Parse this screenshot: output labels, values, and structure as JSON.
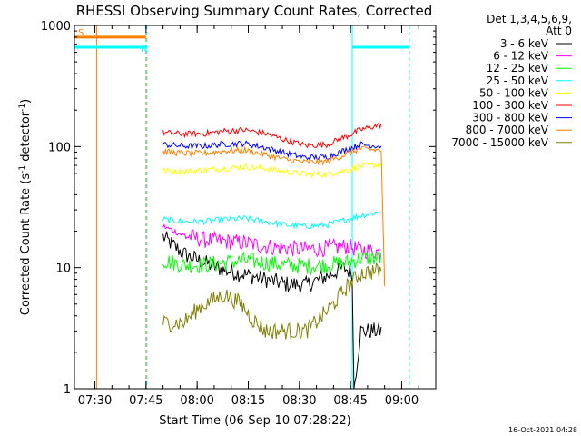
{
  "chart_data": {
    "type": "line",
    "title": "RHESSI Observing Summary Count Rates, Corrected",
    "xlabel": "Start Time (06-Sep-10 07:28:22)",
    "ylabel_parts": [
      "Corrected Count Rate (s",
      "-1",
      " detector",
      "-1",
      ")"
    ],
    "ylabel_text": "Corrected Count Rate (s-1 detector-1)",
    "yscale": "log",
    "ylim": [
      1,
      1000
    ],
    "y_ticks": [
      {
        "value": 1,
        "label": "1"
      },
      {
        "value": 10,
        "label": "10"
      },
      {
        "value": 100,
        "label": "100"
      },
      {
        "value": 1000,
        "label": "1000"
      }
    ],
    "xlim_minutes_after_0728": [
      -4,
      102
    ],
    "x_ticks": [
      {
        "minute": 2,
        "label": "07:30"
      },
      {
        "minute": 17,
        "label": "07:45"
      },
      {
        "minute": 32,
        "label": "08:00"
      },
      {
        "minute": 47,
        "label": "08:15"
      },
      {
        "minute": 62,
        "label": "08:30"
      },
      {
        "minute": 77,
        "label": "08:45"
      },
      {
        "minute": 92,
        "label": "09:00"
      }
    ],
    "legend_header": [
      "Det 1,3,4,5,6,9,",
      "Att 0"
    ],
    "series": [
      {
        "name": "3 - 6 keV",
        "color": "#000000",
        "points": [
          [
            22,
            18
          ],
          [
            28,
            13
          ],
          [
            34,
            11
          ],
          [
            40,
            9.5
          ],
          [
            46,
            8.8
          ],
          [
            52,
            8
          ],
          [
            58,
            7.3
          ],
          [
            64,
            7.2
          ],
          [
            70,
            8.5
          ],
          [
            75,
            10
          ],
          [
            77.5,
            9
          ],
          [
            78,
            1
          ],
          [
            80,
            3
          ],
          [
            86,
            3
          ]
        ]
      },
      {
        "name": "6 - 12 keV",
        "color": "#ff00ff",
        "points": [
          [
            22,
            22
          ],
          [
            28,
            18.5
          ],
          [
            34,
            17
          ],
          [
            40,
            16.5
          ],
          [
            46,
            16
          ],
          [
            52,
            15
          ],
          [
            58,
            14.5
          ],
          [
            64,
            14.2
          ],
          [
            70,
            14.5
          ],
          [
            76,
            15
          ],
          [
            80,
            14
          ],
          [
            86,
            13.5
          ]
        ]
      },
      {
        "name": "12 - 25 keV",
        "color": "#00ff00",
        "points": [
          [
            22,
            11.5
          ],
          [
            28,
            10.5
          ],
          [
            34,
            10.5
          ],
          [
            40,
            11
          ],
          [
            46,
            11.5
          ],
          [
            52,
            11
          ],
          [
            58,
            10.5
          ],
          [
            64,
            10.3
          ],
          [
            70,
            10.5
          ],
          [
            76,
            11
          ],
          [
            80,
            12
          ],
          [
            86,
            12
          ]
        ]
      },
      {
        "name": "25 - 50 keV",
        "color": "#00ffff",
        "points": [
          [
            22,
            25
          ],
          [
            28,
            24
          ],
          [
            34,
            24
          ],
          [
            40,
            25
          ],
          [
            46,
            25.5
          ],
          [
            52,
            24
          ],
          [
            58,
            22.5
          ],
          [
            64,
            22
          ],
          [
            70,
            22.5
          ],
          [
            76,
            25
          ],
          [
            80,
            27
          ],
          [
            86,
            29
          ]
        ]
      },
      {
        "name": "50 - 100 keV",
        "color": "#ffff00",
        "points": [
          [
            22,
            63
          ],
          [
            28,
            62
          ],
          [
            34,
            64
          ],
          [
            40,
            66
          ],
          [
            46,
            68
          ],
          [
            52,
            66
          ],
          [
            58,
            62
          ],
          [
            64,
            59
          ],
          [
            70,
            59
          ],
          [
            76,
            64
          ],
          [
            80,
            69
          ],
          [
            86,
            71
          ]
        ]
      },
      {
        "name": "100 - 300 keV",
        "color": "#ff0000",
        "points": [
          [
            22,
            130
          ],
          [
            28,
            127
          ],
          [
            34,
            128
          ],
          [
            40,
            134
          ],
          [
            46,
            137
          ],
          [
            52,
            128
          ],
          [
            58,
            113
          ],
          [
            64,
            102
          ],
          [
            70,
            104
          ],
          [
            76,
            122
          ],
          [
            80,
            138
          ],
          [
            86,
            152
          ]
        ]
      },
      {
        "name": "300 - 800 keV",
        "color": "#0000ff",
        "points": [
          [
            22,
            104
          ],
          [
            28,
            101
          ],
          [
            34,
            101
          ],
          [
            40,
            105
          ],
          [
            46,
            106
          ],
          [
            52,
            98
          ],
          [
            58,
            88
          ],
          [
            64,
            81
          ],
          [
            70,
            82
          ],
          [
            76,
            95
          ],
          [
            80,
            104
          ],
          [
            86,
            101
          ]
        ]
      },
      {
        "name": "800 - 7000 keV",
        "color": "#ff8000",
        "points": [
          [
            22,
            91
          ],
          [
            28,
            88
          ],
          [
            34,
            88
          ],
          [
            40,
            92
          ],
          [
            46,
            93
          ],
          [
            52,
            86
          ],
          [
            58,
            78
          ],
          [
            64,
            74
          ],
          [
            70,
            75
          ],
          [
            76,
            87
          ],
          [
            80,
            96
          ],
          [
            86,
            93
          ],
          [
            87,
            7
          ]
        ]
      },
      {
        "name": "7000 - 15000 keV",
        "color": "#808000",
        "points": [
          [
            22,
            3.5
          ],
          [
            28,
            3.5
          ],
          [
            33,
            4.8
          ],
          [
            40,
            6
          ],
          [
            45,
            5
          ],
          [
            48,
            3.8
          ],
          [
            52,
            3
          ],
          [
            58,
            3
          ],
          [
            64,
            3
          ],
          [
            68,
            3.8
          ],
          [
            72,
            5
          ],
          [
            76,
            7
          ],
          [
            80,
            9
          ],
          [
            86,
            9.5
          ]
        ]
      }
    ],
    "annotations": [
      {
        "label": "S",
        "color": "#ff8000",
        "value": 800,
        "x_range_minutes": [
          -4,
          17
        ]
      },
      {
        "label": "N",
        "color": "#00ffff",
        "value": 660,
        "x_range_minutes": [
          -4,
          17
        ]
      },
      {
        "label": "",
        "color": "#00ffff",
        "value": 660,
        "x_range_minutes": [
          77.5,
          94
        ]
      }
    ],
    "vertical_markers": [
      {
        "color": "#ff8000",
        "minute": 2.5,
        "style": "solid"
      },
      {
        "color": "#ff8000",
        "minute": 17,
        "style": "dashed"
      },
      {
        "color": "#00ffff",
        "minute": 17,
        "style": "dashed"
      },
      {
        "color": "#00ffff",
        "minute": 77.5,
        "style": "solid"
      },
      {
        "color": "#00ffff",
        "minute": 94,
        "style": "dashed"
      }
    ],
    "timestamp": "16-Oct-2021 04:28"
  }
}
